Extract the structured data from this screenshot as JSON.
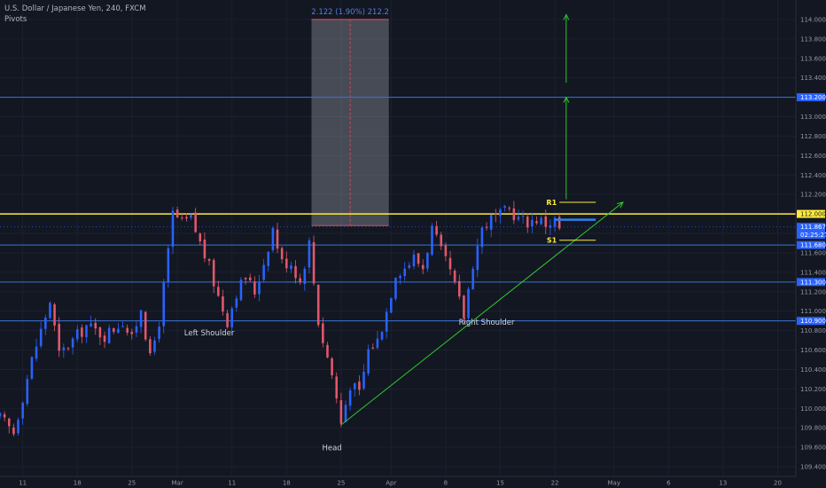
{
  "header": {
    "title": "U.S. Dollar / Japanese Yen, 240, FXCM",
    "indicator": "Pivots"
  },
  "colors": {
    "background": "#131722",
    "up": "#2962ff",
    "down": "#e2586b",
    "resistance": "#ffeb3b",
    "support_line": "#3a74d6",
    "trend": "#2dc82d",
    "axis_text": "#9598a1",
    "price_tag": "#2962ff",
    "box_fill": "#d1d4dc",
    "box_border": "#e84b5c"
  },
  "chart_data": {
    "type": "candlestick",
    "symbol": "U.S. Dollar / Japanese Yen, 240, FXCM",
    "ylim": [
      109.3,
      114.2
    ],
    "y_ticks": [
      "109.400",
      "109.600",
      "109.800",
      "110.000",
      "110.200",
      "110.400",
      "110.600",
      "110.800",
      "111.000",
      "111.200",
      "111.400",
      "111.600",
      "111.800",
      "112.000",
      "112.200",
      "112.400",
      "112.600",
      "112.800",
      "113.000",
      "113.200",
      "113.400",
      "113.600",
      "113.800",
      "114.000"
    ],
    "x_ticks": [
      "11",
      "18",
      "25",
      "Mar",
      "11",
      "18",
      "25",
      "Apr",
      "8",
      "15",
      "22",
      "May",
      "6",
      "13",
      "20"
    ],
    "x_tick_index": [
      0,
      12,
      24,
      34,
      46,
      58,
      70,
      81,
      93,
      105,
      117,
      130,
      142,
      154,
      166
    ],
    "x_index_range": [
      -5,
      170
    ],
    "key_points": [
      [
        -5,
        109.9
      ],
      [
        -2,
        109.75
      ],
      [
        2,
        110.5
      ],
      [
        6,
        111.1
      ],
      [
        8,
        110.55
      ],
      [
        10,
        110.65
      ],
      [
        14,
        110.85
      ],
      [
        18,
        110.75
      ],
      [
        22,
        110.9
      ],
      [
        24,
        110.7
      ],
      [
        26,
        111.05
      ],
      [
        28,
        110.5
      ],
      [
        30,
        110.9
      ],
      [
        32,
        111.6
      ],
      [
        33,
        112.0
      ],
      [
        35,
        111.9
      ],
      [
        37,
        111.95
      ],
      [
        39,
        111.7
      ],
      [
        41,
        111.45
      ],
      [
        43,
        111.15
      ],
      [
        45,
        110.9
      ],
      [
        47,
        111.2
      ],
      [
        49,
        111.35
      ],
      [
        51,
        111.2
      ],
      [
        53,
        111.5
      ],
      [
        55,
        111.85
      ],
      [
        57,
        111.5
      ],
      [
        59,
        111.5
      ],
      [
        61,
        111.3
      ],
      [
        63,
        111.7
      ],
      [
        65,
        110.9
      ],
      [
        66,
        110.7
      ],
      [
        68,
        110.35
      ],
      [
        70,
        109.85
      ],
      [
        72,
        110.25
      ],
      [
        74,
        110.15
      ],
      [
        76,
        110.6
      ],
      [
        78,
        110.7
      ],
      [
        80,
        111.0
      ],
      [
        82,
        111.4
      ],
      [
        84,
        111.45
      ],
      [
        86,
        111.55
      ],
      [
        88,
        111.45
      ],
      [
        90,
        111.85
      ],
      [
        92,
        111.6
      ],
      [
        94,
        111.4
      ],
      [
        96,
        111.1
      ],
      [
        97,
        110.95
      ],
      [
        99,
        111.5
      ],
      [
        101,
        111.85
      ],
      [
        103,
        111.95
      ],
      [
        105,
        111.98
      ],
      [
        107,
        112.05
      ],
      [
        109,
        111.95
      ],
      [
        111,
        111.92
      ],
      [
        113,
        111.95
      ],
      [
        115,
        111.9
      ],
      [
        117,
        111.93
      ],
      [
        118,
        111.85
      ]
    ],
    "candle_count": 124,
    "current_price": "111.867",
    "countdown": "02:25:27",
    "levels": [
      {
        "price": 113.2,
        "label": "113.200",
        "color": "#3a74d6"
      },
      {
        "price": 112.0,
        "label": "112.000",
        "color": "#ffeb3b"
      },
      {
        "price": 111.68,
        "label": "111.680",
        "color": "#3a74d6"
      },
      {
        "price": 111.3,
        "label": "111.300",
        "color": "#3a74d6"
      },
      {
        "price": 110.9,
        "label": "110.900",
        "color": "#3a74d6"
      }
    ],
    "measure_box": {
      "x1": 63.5,
      "x2": 80.5,
      "y_top": 114.0,
      "y_bottom": 111.88,
      "label": "2.122 (1.90%) 212.2"
    },
    "pivots": [
      {
        "label": "R1",
        "price": 112.12,
        "x1": 118,
        "x2": 126
      },
      {
        "label": "S1",
        "price": 111.73,
        "x1": 118,
        "x2": 126
      }
    ],
    "pivot_current": {
      "price": 111.94,
      "x1": 117,
      "x2": 126
    },
    "trendline": {
      "x1": 70,
      "y1": 109.83,
      "x2": 132,
      "y2": 112.12
    },
    "target_arrows": [
      {
        "x": 119.5,
        "y_from": 112.15,
        "y_to": 113.2
      },
      {
        "x": 119.5,
        "y_from": 113.35,
        "y_to": 114.05
      }
    ],
    "annotations": [
      {
        "text": "Left Shoulder",
        "x": 41,
        "y": 110.75
      },
      {
        "text": "Head",
        "x": 68,
        "y": 109.57
      },
      {
        "text": "Right Shoulder",
        "x": 102,
        "y": 110.86
      }
    ]
  }
}
